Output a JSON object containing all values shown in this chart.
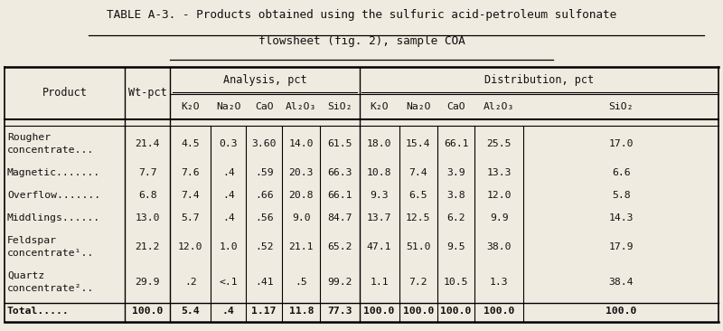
{
  "title_line1": "TABLE A-3. - Products obtained using the sulfuric acid-petroleum sulfonate",
  "title_line2": "flowsheet (fig. 2), sample COA",
  "bg_color": "#f0ebe0",
  "text_color": "#111111",
  "rows": [
    {
      "product_line1": "Rougher",
      "product_line2": "concentrate...",
      "wt_pct": "21.4",
      "k2o": "4.5",
      "na2o": "0.3",
      "cao": "3.60",
      "al2o3": "14.0",
      "sio2": "61.5",
      "d_k2o": "18.0",
      "d_na2o": "15.4",
      "d_cao": "66.1",
      "d_al2o3": "25.5",
      "d_sio2": "17.0",
      "two_line": true
    },
    {
      "product_line1": "Magnetic.......",
      "product_line2": "",
      "wt_pct": "7.7",
      "k2o": "7.6",
      "na2o": ".4",
      "cao": ".59",
      "al2o3": "20.3",
      "sio2": "66.3",
      "d_k2o": "10.8",
      "d_na2o": "7.4",
      "d_cao": "3.9",
      "d_al2o3": "13.3",
      "d_sio2": "6.6",
      "two_line": false
    },
    {
      "product_line1": "Overflow.......",
      "product_line2": "",
      "wt_pct": "6.8",
      "k2o": "7.4",
      "na2o": ".4",
      "cao": ".66",
      "al2o3": "20.8",
      "sio2": "66.1",
      "d_k2o": "9.3",
      "d_na2o": "6.5",
      "d_cao": "3.8",
      "d_al2o3": "12.0",
      "d_sio2": "5.8",
      "two_line": false
    },
    {
      "product_line1": "Middlings......",
      "product_line2": "",
      "wt_pct": "13.0",
      "k2o": "5.7",
      "na2o": ".4",
      "cao": ".56",
      "al2o3": "9.0",
      "sio2": "84.7",
      "d_k2o": "13.7",
      "d_na2o": "12.5",
      "d_cao": "6.2",
      "d_al2o3": "9.9",
      "d_sio2": "14.3",
      "two_line": false
    },
    {
      "product_line1": "Feldspar",
      "product_line2": "concentrate¹..",
      "wt_pct": "21.2",
      "k2o": "12.0",
      "na2o": "1.0",
      "cao": ".52",
      "al2o3": "21.1",
      "sio2": "65.2",
      "d_k2o": "47.1",
      "d_na2o": "51.0",
      "d_cao": "9.5",
      "d_al2o3": "38.0",
      "d_sio2": "17.9",
      "two_line": true
    },
    {
      "product_line1": "Quartz",
      "product_line2": "concentrate²..",
      "wt_pct": "29.9",
      "k2o": ".2",
      "na2o": "<.1",
      "cao": ".41",
      "al2o3": ".5",
      "sio2": "99.2",
      "d_k2o": "1.1",
      "d_na2o": "7.2",
      "d_cao": "10.5",
      "d_al2o3": "1.3",
      "d_sio2": "38.4",
      "two_line": true
    },
    {
      "product_line1": "Total.....",
      "product_line2": "",
      "wt_pct": "100.0",
      "k2o": "5.4",
      "na2o": ".4",
      "cao": "1.17",
      "al2o3": "11.8",
      "sio2": "77.3",
      "d_k2o": "100.0",
      "d_na2o": "100.0",
      "d_cao": "100.0",
      "d_al2o3": "100.0",
      "d_sio2": "100.0",
      "two_line": false,
      "is_total": true
    }
  ],
  "font_size": 8.2,
  "header_font_size": 8.5,
  "title_font_size": 9.2
}
